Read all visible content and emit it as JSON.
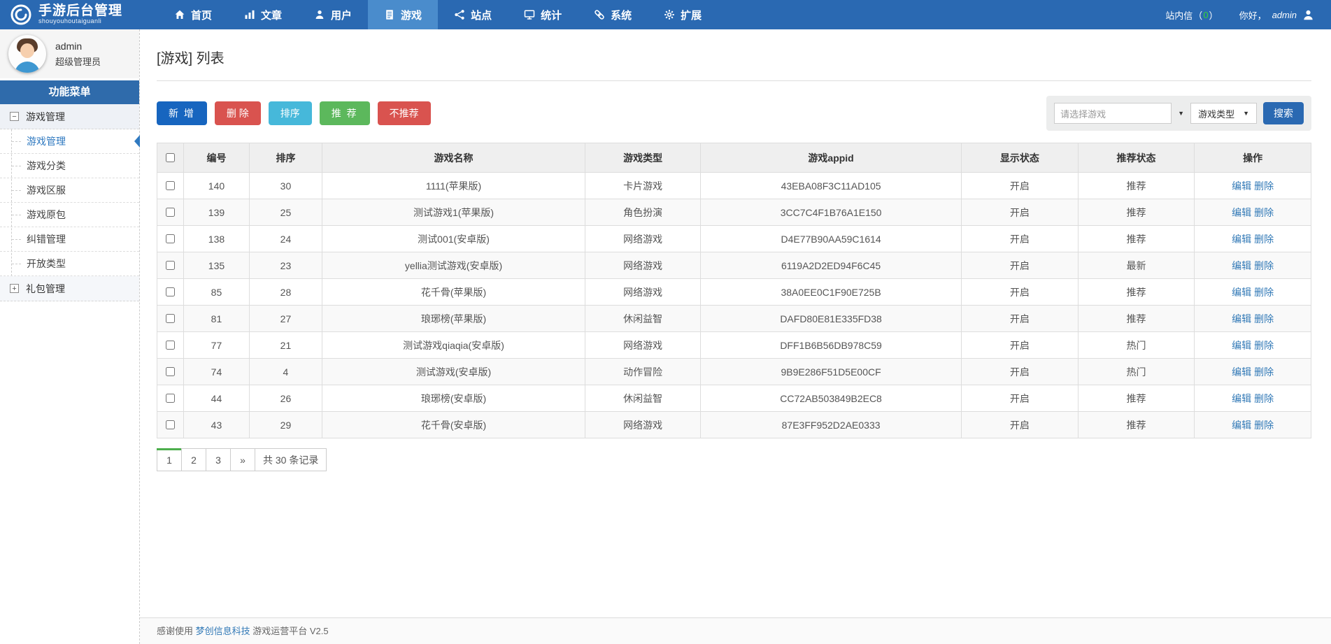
{
  "navbar": {
    "logo_title": "手游后台管理",
    "logo_subtitle": "shouyouhoutaiguanli",
    "items": [
      {
        "label": "首页",
        "icon": "home-icon",
        "active": false
      },
      {
        "label": "文章",
        "icon": "bar-chart-icon",
        "active": false
      },
      {
        "label": "用户",
        "icon": "user-icon",
        "active": false
      },
      {
        "label": "游戏",
        "icon": "document-icon",
        "active": true
      },
      {
        "label": "站点",
        "icon": "share-icon",
        "active": false
      },
      {
        "label": "统计",
        "icon": "monitor-icon",
        "active": false
      },
      {
        "label": "系统",
        "icon": "link-icon",
        "active": false
      },
      {
        "label": "扩展",
        "icon": "gear-icon",
        "active": false
      }
    ],
    "mail": {
      "label": "站内信",
      "open": "（",
      "count": "0",
      "close": "）"
    },
    "greeting": {
      "prefix": "你好，",
      "name": "admin"
    }
  },
  "sidebar": {
    "user": {
      "name": "admin",
      "role": "超级管理员"
    },
    "menu_header": "功能菜单",
    "groups": [
      {
        "label": "游戏管理",
        "expanded": true,
        "toggle_glyph": "−",
        "items": [
          {
            "label": "游戏管理",
            "active": true
          },
          {
            "label": "游戏分类",
            "active": false
          },
          {
            "label": "游戏区服",
            "active": false
          },
          {
            "label": "游戏原包",
            "active": false
          },
          {
            "label": "纠错管理",
            "active": false
          },
          {
            "label": "开放类型",
            "active": false
          }
        ]
      },
      {
        "label": "礼包管理",
        "expanded": false,
        "toggle_glyph": "+",
        "items": []
      }
    ]
  },
  "main": {
    "title": "[游戏] 列表",
    "toolbar": {
      "buttons": [
        {
          "label": "新 增",
          "color": "#1765bf"
        },
        {
          "label": "删 除",
          "color": "#d9534f"
        },
        {
          "label": "排序",
          "color": "#46b8da"
        },
        {
          "label": "推 荐",
          "color": "#5cb85c"
        },
        {
          "label": "不推荐",
          "color": "#d9534f"
        }
      ]
    },
    "search": {
      "game_placeholder": "请选择游戏",
      "type_label": "游戏类型",
      "button_label": "搜索"
    },
    "table": {
      "headers": [
        "编号",
        "排序",
        "游戏名称",
        "游戏类型",
        "游戏appid",
        "显示状态",
        "推荐状态",
        "操作"
      ],
      "action_labels": [
        "编辑",
        "删除"
      ],
      "rows": [
        {
          "id": "140",
          "sort": "30",
          "name": "1111(苹果版)",
          "type": "卡片游戏",
          "appid": "43EBA08F3C11AD105",
          "status": "开启",
          "recommend": "推荐"
        },
        {
          "id": "139",
          "sort": "25",
          "name": "测试游戏1(苹果版)",
          "type": "角色扮演",
          "appid": "3CC7C4F1B76A1E150",
          "status": "开启",
          "recommend": "推荐"
        },
        {
          "id": "138",
          "sort": "24",
          "name": "测试001(安卓版)",
          "type": "网络游戏",
          "appid": "D4E77B90AA59C1614",
          "status": "开启",
          "recommend": "推荐"
        },
        {
          "id": "135",
          "sort": "23",
          "name": "yellia测试游戏(安卓版)",
          "type": "网络游戏",
          "appid": "6119A2D2ED94F6C45",
          "status": "开启",
          "recommend": "最新"
        },
        {
          "id": "85",
          "sort": "28",
          "name": "花千骨(苹果版)",
          "type": "网络游戏",
          "appid": "38A0EE0C1F90E725B",
          "status": "开启",
          "recommend": "推荐"
        },
        {
          "id": "81",
          "sort": "27",
          "name": "琅琊榜(苹果版)",
          "type": "休闲益智",
          "appid": "DAFD80E81E335FD38",
          "status": "开启",
          "recommend": "推荐"
        },
        {
          "id": "77",
          "sort": "21",
          "name": "测试游戏qiaqia(安卓版)",
          "type": "网络游戏",
          "appid": "DFF1B6B56DB978C59",
          "status": "开启",
          "recommend": "热门"
        },
        {
          "id": "74",
          "sort": "4",
          "name": "测试游戏(安卓版)",
          "type": "动作冒险",
          "appid": "9B9E286F51D5E00CF",
          "status": "开启",
          "recommend": "热门"
        },
        {
          "id": "44",
          "sort": "26",
          "name": "琅琊榜(安卓版)",
          "type": "休闲益智",
          "appid": "CC72AB503849B2EC8",
          "status": "开启",
          "recommend": "推荐"
        },
        {
          "id": "43",
          "sort": "29",
          "name": "花千骨(安卓版)",
          "type": "网络游戏",
          "appid": "87E3FF952D2AE0333",
          "status": "开启",
          "recommend": "推荐"
        }
      ]
    },
    "pagination": {
      "pages": [
        "1",
        "2",
        "3"
      ],
      "active_page": "1",
      "next_glyph": "»",
      "total_label": "共 30 条记录"
    }
  },
  "footer": {
    "prefix": "感谢使用 ",
    "link": "梦创信息科技",
    "suffix": " 游戏运营平台 V2.5"
  },
  "colors": {
    "navbar": "#2a69b2",
    "navbar_active": "#4a8ccc",
    "primary_button": "#1765bf",
    "danger_button": "#d9534f",
    "info_button": "#46b8da",
    "success_button": "#5cb85c",
    "search_button": "#2a69b2",
    "link": "#337ab7",
    "count_green": "#35d435",
    "pagination_active": "#4cae4c"
  }
}
